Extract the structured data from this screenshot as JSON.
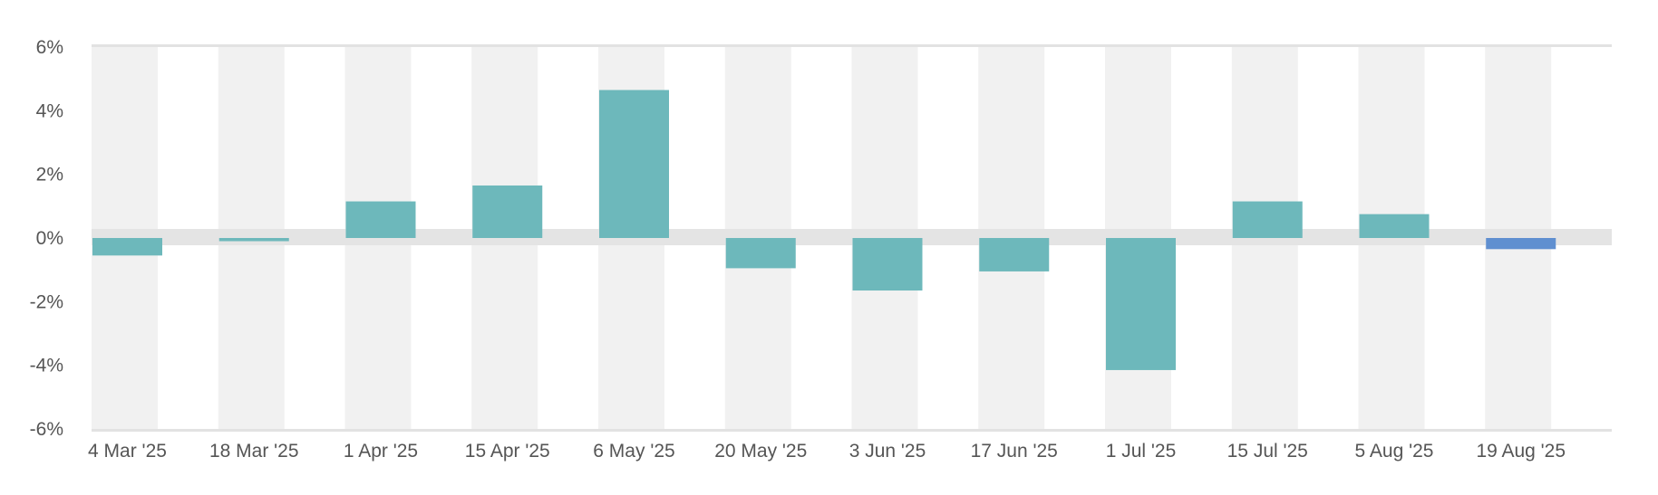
{
  "chart_data": {
    "type": "bar",
    "title": "",
    "xlabel": "",
    "ylabel": "",
    "categories": [
      "4 Mar '25",
      "18 Mar '25",
      "1 Apr '25",
      "15 Apr '25",
      "6 May '25",
      "20 May '25",
      "3 Jun '25",
      "17 Jun '25",
      "1 Jul '25",
      "15 Jul '25",
      "5 Aug '25",
      "19 Aug '25"
    ],
    "values": [
      -0.55,
      -0.1,
      1.15,
      1.65,
      4.65,
      -0.95,
      -1.65,
      -1.05,
      -4.15,
      1.15,
      0.75,
      -0.35
    ],
    "ylim": [
      -6,
      6
    ],
    "yticks": [
      "6%",
      "4%",
      "2%",
      "0%",
      "-2%",
      "-4%",
      "-6%"
    ],
    "ytick_values": [
      6,
      4,
      2,
      0,
      -2,
      -4,
      -6
    ],
    "colors": {
      "bar": "#6db8bb",
      "bar_last": "#5f8fd0",
      "band": "#f1f1f1",
      "zero_band": "#e4e4e4",
      "axis": "#e2e2e2",
      "text": "#555555"
    },
    "grid": false,
    "legend": "none"
  }
}
